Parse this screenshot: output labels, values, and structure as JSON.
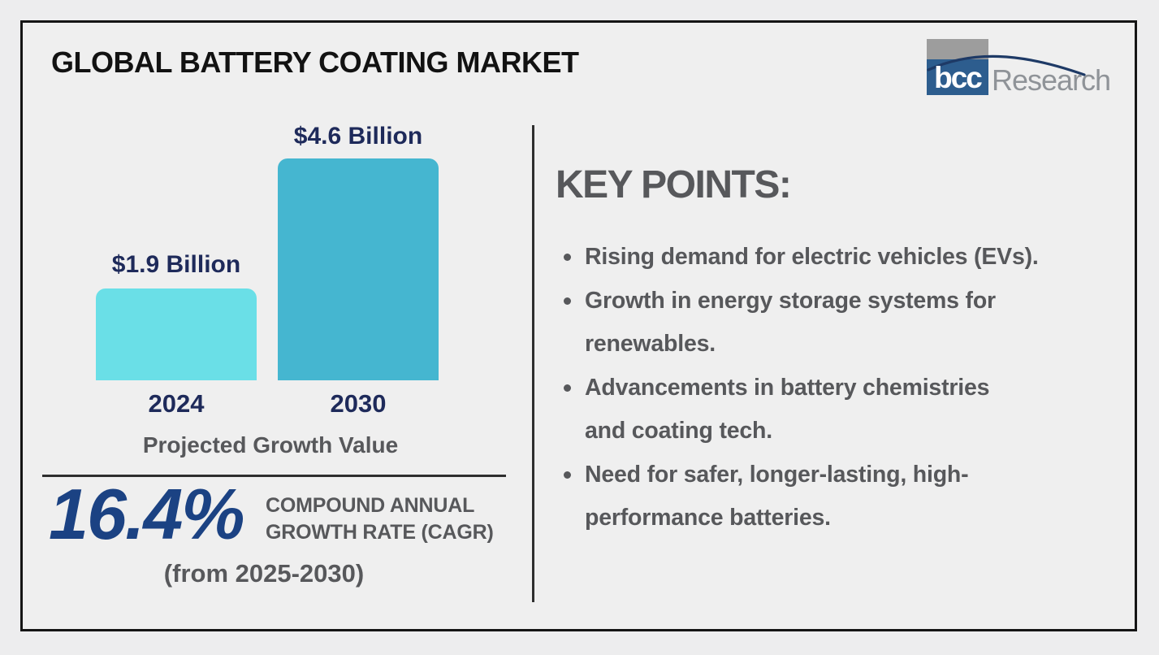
{
  "page": {
    "title": "GLOBAL BATTERY COATING MARKET"
  },
  "logo": {
    "bcc": "bcc",
    "research": "Research"
  },
  "chart_data": {
    "type": "bar",
    "categories": [
      "2024",
      "2030"
    ],
    "values": [
      1.9,
      4.6
    ],
    "value_labels": [
      "$1.9 Billion",
      "$4.6 Billion"
    ],
    "caption": "Projected Growth Value",
    "unit": "USD Billion",
    "ylim": [
      0,
      4.6
    ],
    "grid": false,
    "bar_colors": [
      "#6adfe7",
      "#45b6d0"
    ],
    "label_color": "#1e2a5a"
  },
  "cagr": {
    "value": "16.4%",
    "label": "COMPOUND ANNUAL\nGROWTH RATE (CAGR)",
    "period": "(from 2025-2030)"
  },
  "key_points": {
    "heading": "KEY POINTS:",
    "items": [
      {
        "text": "Rising demand for electric vehicles (EVs)."
      },
      {
        "text": "Growth in energy storage systems for\nrenewables."
      },
      {
        "text": "Advancements in battery chemistries\nand coating tech."
      },
      {
        "text": "Need for safer, longer-lasting, high-\nperformance batteries."
      }
    ]
  },
  "colors": {
    "background": "#efefef",
    "frame_border": "#151515",
    "navy_text": "#1e2a5a",
    "accent_blue": "#1b4283",
    "gray_text": "#57585b",
    "bar_2024": "#6adfe7",
    "bar_2030": "#45b6d0",
    "logo_blue": "#2d5d8e",
    "logo_gray": "#9d9d9d",
    "swoosh_navy": "#1e3a66"
  }
}
